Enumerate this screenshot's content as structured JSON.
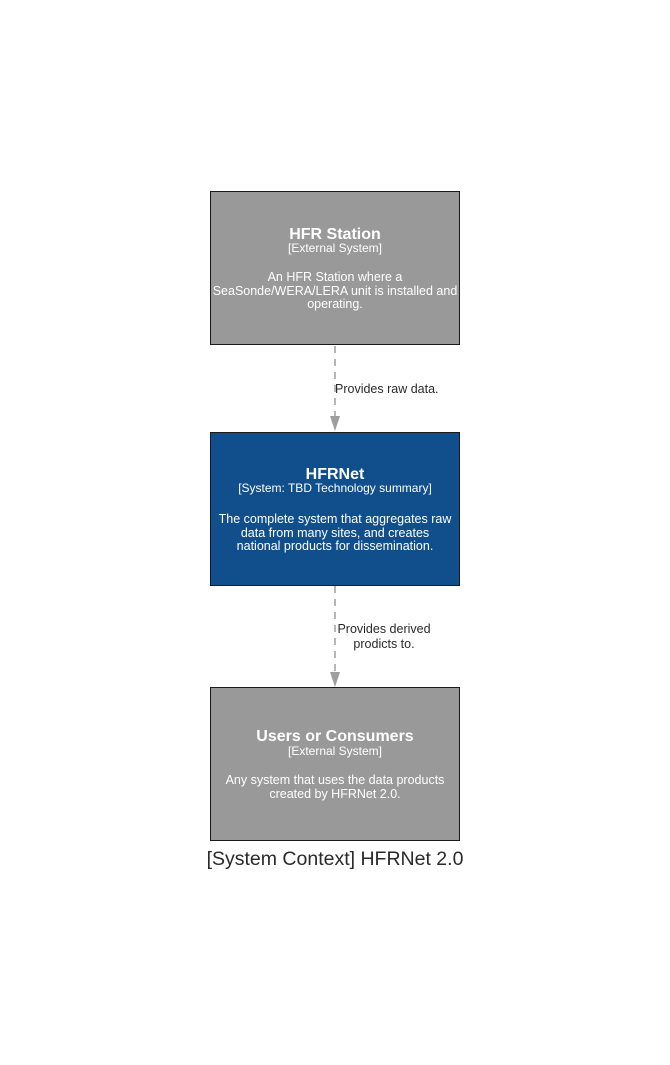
{
  "diagram": {
    "caption": "[System Context] HFRNet 2.0",
    "nodes": {
      "hfr_station": {
        "title": "HFR Station",
        "type": "[External System]",
        "description_lines": [
          "An HFR Station where a",
          "SeaSonde/WERA/LERA unit is installed and",
          "operating."
        ]
      },
      "hfrnet": {
        "title": "HFRNet",
        "type": "[System: TBD Technology summary]",
        "description_lines": [
          "The complete system that aggregates raw",
          "data from many sites, and creates",
          "national products for dissemination."
        ]
      },
      "users": {
        "title": "Users or Consumers",
        "type": "[External System]",
        "description_lines": [
          "Any system that uses the data products",
          "created by HFRNet 2.0."
        ]
      }
    },
    "edges": {
      "station_to_hfrnet": {
        "label_lines": [
          "Provides raw data."
        ]
      },
      "hfrnet_to_users": {
        "label_lines": [
          "Provides derived",
          "prodicts to."
        ]
      }
    },
    "colors": {
      "external_system": "#999999",
      "system": "#114f8c",
      "edge": "#9e9e9e",
      "border": "#1a1a1a"
    }
  }
}
